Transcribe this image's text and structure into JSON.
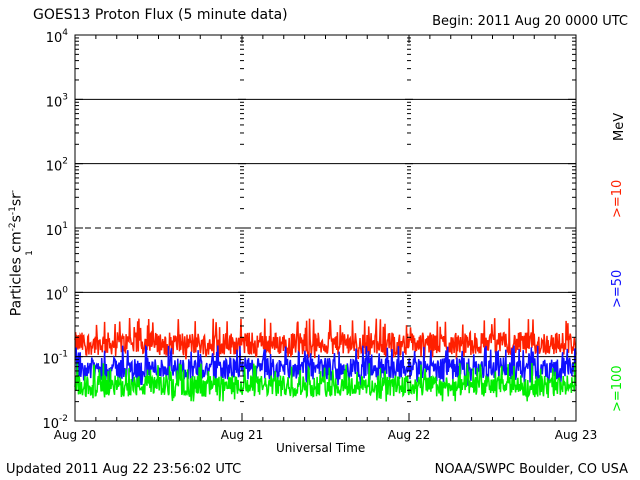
{
  "page": {
    "title": "GOES13 Proton Flux (5 minute data)",
    "begin": "Begin: 2011 Aug 20 0000 UTC",
    "updated": "Updated 2011 Aug 22 23:56:02 UTC",
    "credit": "NOAA/SWPC Boulder, CO USA"
  },
  "chart_data": {
    "type": "line",
    "title": "GOES13 Proton Flux (5 minute data)",
    "xlabel": "Universal Time",
    "ylabel": "Particles cm⁻²s⁻¹sr⁻¹",
    "yscale": "log",
    "ylim": [
      0.01,
      10000
    ],
    "y_ticks": [
      {
        "value": 10000,
        "base": "10",
        "exp": "4"
      },
      {
        "value": 1000,
        "base": "10",
        "exp": "3"
      },
      {
        "value": 100,
        "base": "10",
        "exp": "2"
      },
      {
        "value": 10,
        "base": "10",
        "exp": "1"
      },
      {
        "value": 1,
        "base": "10",
        "exp": "0"
      },
      {
        "value": 0.1,
        "base": "10",
        "exp": "-1"
      },
      {
        "value": 0.01,
        "base": "10",
        "exp": "-2"
      }
    ],
    "x_ticks": [
      "Aug 20",
      "Aug 21",
      "Aug 22",
      "Aug 23"
    ],
    "xlim": [
      "2011-08-20 00:00",
      "2011-08-23 00:00"
    ],
    "threshold_lines": [
      {
        "value": 1,
        "style": "solid"
      },
      {
        "value": 10,
        "style": "dashed"
      },
      {
        "value": 100,
        "style": "solid"
      },
      {
        "value": 1000,
        "style": "solid"
      },
      {
        "value": 0.1,
        "style": "solid"
      }
    ],
    "units_label": "MeV",
    "series": [
      {
        "name": ">=10",
        "color": "#ff2000",
        "mean": 0.16,
        "min": 0.09,
        "max": 0.4
      },
      {
        "name": ">=50",
        "color": "#1010ff",
        "mean": 0.065,
        "min": 0.035,
        "max": 0.15
      },
      {
        "name": ">=100",
        "color": "#00ee00",
        "mean": 0.035,
        "min": 0.02,
        "max": 0.08
      }
    ]
  }
}
